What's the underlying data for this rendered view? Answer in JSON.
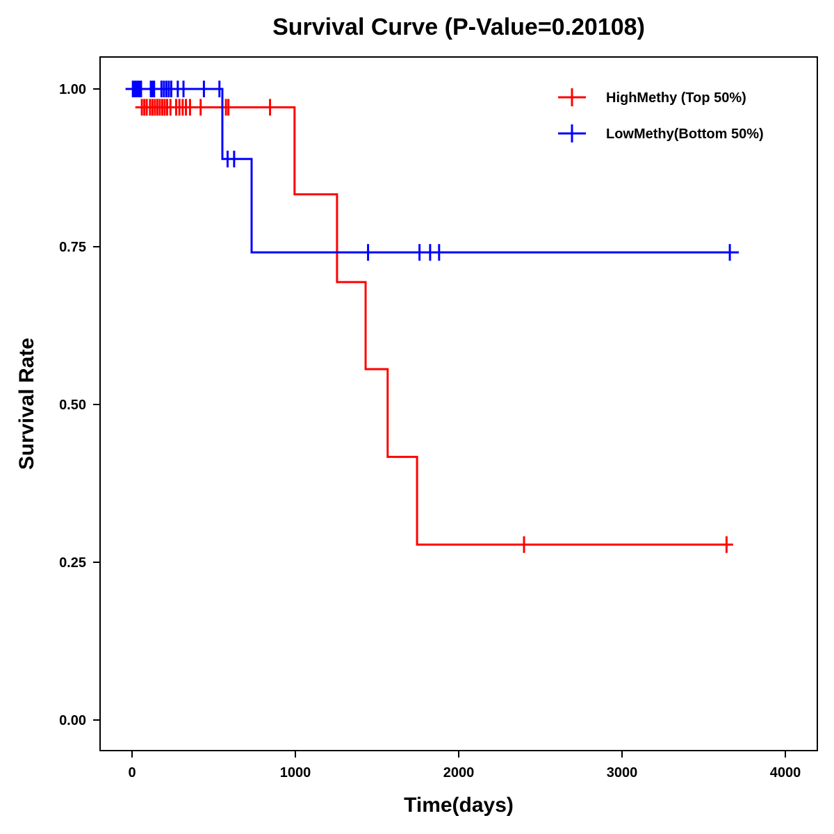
{
  "chart_data": {
    "type": "line",
    "subtype": "kaplan-meier step",
    "title": "Survival Curve (P-Value=0.20108)",
    "xlabel": "Time(days)",
    "ylabel": "Survival Rate",
    "xlim": [
      -200,
      4200
    ],
    "ylim": [
      -0.05,
      1.05
    ],
    "xticks": [
      0,
      1000,
      2000,
      3000,
      4000
    ],
    "xtick_labels": [
      "0",
      "1000",
      "2000",
      "3000",
      "4000"
    ],
    "yticks": [
      0,
      0.25,
      0.5,
      0.75,
      1.0
    ],
    "ytick_labels": [
      "0.00",
      "0.25",
      "0.50",
      "0.75",
      "1.00"
    ],
    "grid": false,
    "legend_position": "top-right",
    "series": [
      {
        "name": "HighMethy (Top 50%)",
        "color": "#ff0000",
        "steps": [
          [
            20,
            0.971
          ],
          [
            995,
            0.833
          ],
          [
            1255,
            0.694
          ],
          [
            1430,
            0.556
          ],
          [
            1565,
            0.417
          ],
          [
            1745,
            0.278
          ],
          [
            3680,
            0.278
          ]
        ],
        "censored": [
          [
            60,
            0.971
          ],
          [
            75,
            0.971
          ],
          [
            90,
            0.971
          ],
          [
            110,
            0.971
          ],
          [
            125,
            0.971
          ],
          [
            140,
            0.971
          ],
          [
            155,
            0.971
          ],
          [
            170,
            0.971
          ],
          [
            185,
            0.971
          ],
          [
            200,
            0.971
          ],
          [
            215,
            0.971
          ],
          [
            235,
            0.971
          ],
          [
            270,
            0.971
          ],
          [
            290,
            0.971
          ],
          [
            310,
            0.971
          ],
          [
            330,
            0.971
          ],
          [
            355,
            0.971
          ],
          [
            420,
            0.971
          ],
          [
            575,
            0.971
          ],
          [
            590,
            0.971
          ],
          [
            845,
            0.971
          ],
          [
            2400,
            0.278
          ],
          [
            3640,
            0.278
          ]
        ]
      },
      {
        "name": "LowMethy(Bottom 50%)",
        "color": "#0000ff",
        "steps": [
          [
            -40,
            1.0
          ],
          [
            553,
            0.889
          ],
          [
            732,
            0.741
          ],
          [
            3715,
            0.741
          ]
        ],
        "censored": [
          [
            5,
            1.0
          ],
          [
            15,
            1.0
          ],
          [
            25,
            1.0
          ],
          [
            35,
            1.0
          ],
          [
            45,
            1.0
          ],
          [
            55,
            1.0
          ],
          [
            115,
            1.0
          ],
          [
            125,
            1.0
          ],
          [
            135,
            1.0
          ],
          [
            180,
            1.0
          ],
          [
            195,
            1.0
          ],
          [
            210,
            1.0
          ],
          [
            225,
            1.0
          ],
          [
            240,
            1.0
          ],
          [
            280,
            1.0
          ],
          [
            315,
            1.0
          ],
          [
            440,
            1.0
          ],
          [
            535,
            1.0
          ],
          [
            585,
            0.889
          ],
          [
            625,
            0.889
          ],
          [
            1445,
            0.741
          ],
          [
            1760,
            0.741
          ],
          [
            1825,
            0.741
          ],
          [
            1880,
            0.741
          ],
          [
            3660,
            0.741
          ]
        ]
      }
    ]
  }
}
